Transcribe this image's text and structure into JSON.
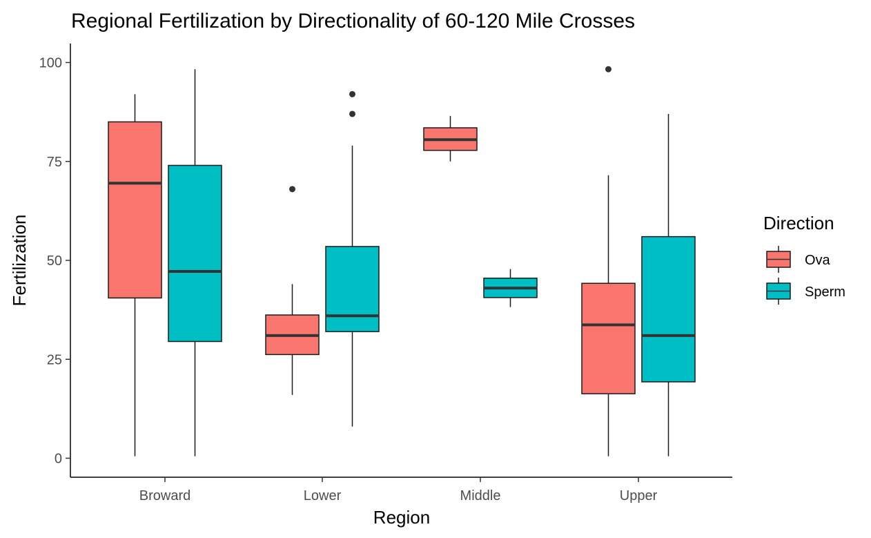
{
  "chart_data": {
    "type": "boxplot",
    "title": "Regional Fertilization by Directionality of 60-120 Mile Crosses",
    "xlabel": "Region",
    "ylabel": "Fertilization",
    "categories": [
      "Broward",
      "Lower",
      "Middle",
      "Upper"
    ],
    "ylim": [
      -4.5,
      105
    ],
    "yticks": [
      0,
      25,
      50,
      75,
      100
    ],
    "yticklabels": [
      "0",
      "25",
      "50",
      "75",
      "100"
    ],
    "grid": false,
    "legend": {
      "title": "Direction",
      "position": "right"
    },
    "series": [
      {
        "name": "Ova",
        "color": "#F8766D",
        "boxes": [
          {
            "category": "Broward",
            "min": 0.5,
            "q1": 40.5,
            "median": 69.5,
            "q3": 85,
            "max": 92,
            "outliers": []
          },
          {
            "category": "Lower",
            "min": 16,
            "q1": 26.2,
            "median": 31,
            "q3": 36.2,
            "max": 44,
            "outliers": [
              68
            ]
          },
          {
            "category": "Middle",
            "min": 75,
            "q1": 77.8,
            "median": 80.5,
            "q3": 83.5,
            "max": 86.5,
            "outliers": []
          },
          {
            "category": "Upper",
            "min": 0.5,
            "q1": 16.3,
            "median": 33.7,
            "q3": 44.2,
            "max": 71.5,
            "outliers": [
              98.3
            ]
          }
        ]
      },
      {
        "name": "Sperm",
        "color": "#00BFC4",
        "boxes": [
          {
            "category": "Broward",
            "min": 0.5,
            "q1": 29.5,
            "median": 47.2,
            "q3": 74,
            "max": 98.3,
            "outliers": []
          },
          {
            "category": "Lower",
            "min": 8,
            "q1": 32,
            "median": 36,
            "q3": 53.5,
            "max": 79,
            "outliers": [
              87,
              92
            ]
          },
          {
            "category": "Middle",
            "min": 38.2,
            "q1": 40.6,
            "median": 43,
            "q3": 45.5,
            "max": 47.8,
            "outliers": []
          },
          {
            "category": "Upper",
            "min": 0.5,
            "q1": 19.3,
            "median": 31,
            "q3": 56,
            "max": 87,
            "outliers": []
          }
        ]
      }
    ]
  }
}
